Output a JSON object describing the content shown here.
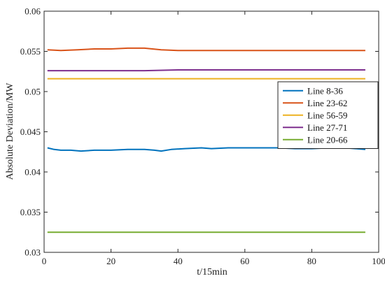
{
  "chart_data": {
    "type": "line",
    "xlabel": "t/15min",
    "ylabel": "Absolute Deviation/MW",
    "xlim": [
      0,
      100
    ],
    "ylim": [
      0.03,
      0.06
    ],
    "x_ticks": [
      0,
      20,
      40,
      60,
      80,
      100
    ],
    "y_ticks": [
      "0.03",
      "0.035",
      "0.04",
      "0.045",
      "0.05",
      "0.055",
      "0.06"
    ],
    "grid": false,
    "legend_position": "right",
    "series": [
      {
        "name": "Line 8-36",
        "color": "#0072BD",
        "x": [
          1,
          3,
          5,
          8,
          11,
          15,
          20,
          25,
          30,
          33,
          35,
          38,
          42,
          47,
          50,
          55,
          60,
          65,
          70,
          75,
          80,
          85,
          90,
          93,
          96
        ],
        "y": [
          0.043,
          0.0428,
          0.0427,
          0.0427,
          0.0426,
          0.0427,
          0.0427,
          0.0428,
          0.0428,
          0.0427,
          0.0426,
          0.0428,
          0.0429,
          0.043,
          0.0429,
          0.043,
          0.043,
          0.043,
          0.043,
          0.0429,
          0.0429,
          0.043,
          0.043,
          0.0429,
          0.0428
        ]
      },
      {
        "name": "Line 23-62",
        "color": "#D95319",
        "x": [
          1,
          5,
          10,
          15,
          20,
          25,
          30,
          35,
          40,
          45,
          50,
          55,
          60,
          65,
          70,
          75,
          80,
          85,
          90,
          96
        ],
        "y": [
          0.0552,
          0.0551,
          0.0552,
          0.0553,
          0.0553,
          0.0554,
          0.0554,
          0.0552,
          0.0551,
          0.0551,
          0.0551,
          0.0551,
          0.0551,
          0.0551,
          0.0551,
          0.0551,
          0.0551,
          0.0551,
          0.0551,
          0.0551
        ]
      },
      {
        "name": "Line 56-59",
        "color": "#EDB120",
        "x": [
          1,
          5,
          20,
          40,
          60,
          80,
          96
        ],
        "y": [
          0.0516,
          0.0516,
          0.0516,
          0.0516,
          0.0516,
          0.0516,
          0.0516
        ]
      },
      {
        "name": "Line 27-71",
        "color": "#7E2F8E",
        "x": [
          1,
          10,
          20,
          30,
          40,
          50,
          60,
          70,
          80,
          90,
          96
        ],
        "y": [
          0.0526,
          0.0526,
          0.0526,
          0.0526,
          0.0527,
          0.0527,
          0.0527,
          0.0527,
          0.0527,
          0.0527,
          0.0527
        ]
      },
      {
        "name": "Line 20-66",
        "color": "#77AC30",
        "x": [
          1,
          20,
          40,
          60,
          80,
          96
        ],
        "y": [
          0.0325,
          0.0325,
          0.0325,
          0.0325,
          0.0325,
          0.0325
        ]
      }
    ]
  }
}
